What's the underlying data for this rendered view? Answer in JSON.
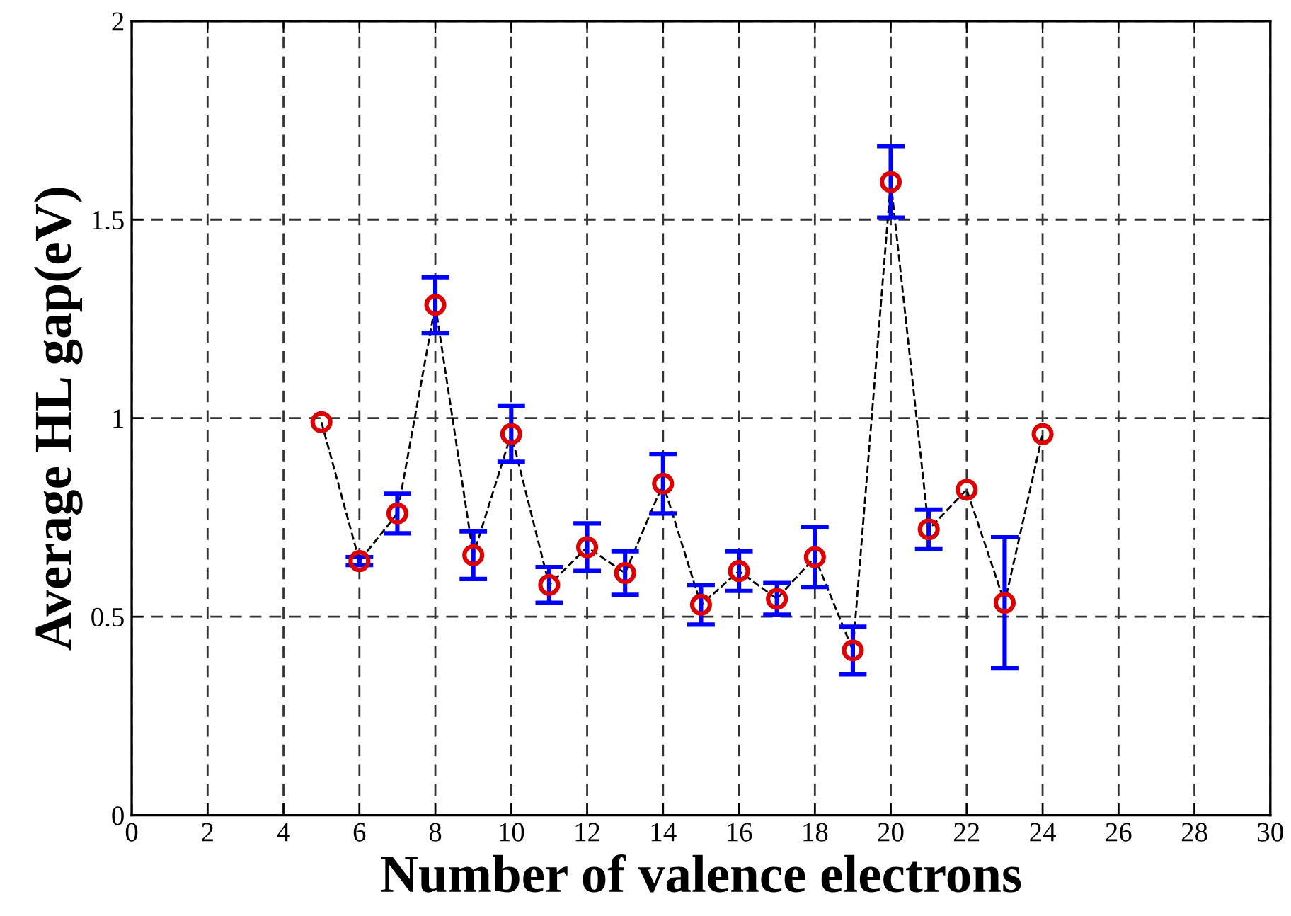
{
  "chart_data": {
    "type": "line",
    "xlabel": "Number of valence electrons",
    "ylabel": "Average HL gap(eV)",
    "x": [
      5,
      6,
      7,
      8,
      9,
      10,
      11,
      12,
      13,
      14,
      15,
      16,
      17,
      18,
      19,
      20,
      21,
      22,
      23,
      24
    ],
    "series": [
      {
        "color": "#dd0000",
        "marker": "circle",
        "line_style": "dashed",
        "values": [
          0.99,
          0.64,
          0.76,
          1.285,
          0.655,
          0.96,
          0.58,
          0.675,
          0.61,
          0.835,
          0.53,
          0.615,
          0.545,
          0.65,
          0.415,
          1.595,
          0.72,
          0.82,
          0.535,
          0.96
        ],
        "errors": [
          null,
          0.01,
          0.05,
          0.07,
          0.06,
          0.07,
          0.045,
          0.06,
          0.055,
          0.075,
          0.05,
          0.05,
          0.04,
          0.075,
          0.06,
          0.09,
          0.05,
          null,
          [
            0.37,
            0.7
          ],
          null
        ]
      }
    ],
    "xlim": [
      0,
      30
    ],
    "xticks": [
      0,
      2,
      4,
      6,
      8,
      10,
      12,
      14,
      16,
      18,
      20,
      22,
      24,
      26,
      28,
      30
    ],
    "ylim": [
      0,
      2
    ],
    "yticks": [
      0,
      0.5,
      1,
      1.5,
      2
    ],
    "grid": true
  }
}
